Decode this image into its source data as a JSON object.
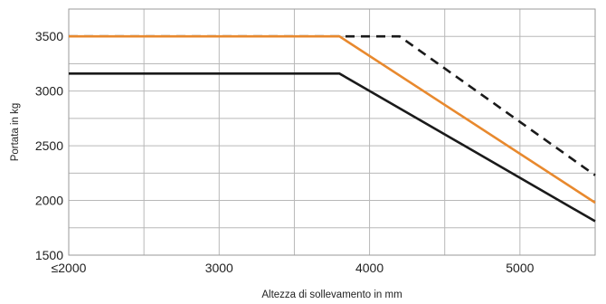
{
  "chart_data": {
    "type": "line",
    "xlabel": "Altezza di sollevamento in mm",
    "ylabel": "Portata in kg",
    "xlim": [
      2000,
      5500
    ],
    "ylim": [
      1500,
      3750
    ],
    "x_ticks": [
      {
        "value": 2000,
        "label": "≤2000"
      },
      {
        "value": 3000,
        "label": "3000"
      },
      {
        "value": 4000,
        "label": "4000"
      },
      {
        "value": 5000,
        "label": "5000"
      }
    ],
    "x_minor_ticks": [
      2500,
      3500,
      4500
    ],
    "y_ticks": [
      1500,
      2000,
      2500,
      3000,
      3500
    ],
    "y_minor_ticks": [
      1750,
      2250,
      2750,
      3250
    ],
    "grid": true,
    "series": [
      {
        "style": "dashed",
        "color": "#1a1a1a",
        "x": [
          2000,
          4200,
          5500
        ],
        "y": [
          3500,
          3500,
          2230
        ]
      },
      {
        "style": "solid",
        "color": "#e8892e",
        "x": [
          2000,
          3800,
          5500
        ],
        "y": [
          3500,
          3500,
          1980
        ]
      },
      {
        "style": "solid",
        "color": "#1a1a1a",
        "x": [
          2000,
          3800,
          5500
        ],
        "y": [
          3160,
          3160,
          1810
        ]
      }
    ]
  }
}
